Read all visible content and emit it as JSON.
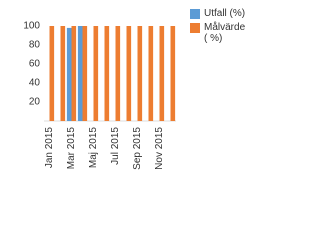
{
  "chart_data": {
    "type": "bar",
    "categories": [
      "Jan 2015",
      null,
      "Mar 2015",
      null,
      "Maj 2015",
      null,
      "Jul 2015",
      null,
      "Sep 2015",
      null,
      "Nov 2015",
      null
    ],
    "series": [
      {
        "name": "Utfall (%)",
        "color": "#5b9bd5",
        "values": [
          null,
          null,
          98,
          100,
          null,
          null,
          null,
          null,
          null,
          null,
          null,
          null
        ]
      },
      {
        "name": "Målvärde ( %)",
        "color": "#ed7d31",
        "values": [
          100,
          100,
          100,
          100,
          100,
          100,
          100,
          100,
          100,
          100,
          100,
          100
        ]
      }
    ],
    "ylim": [
      0,
      120
    ],
    "yticks": [
      20,
      40,
      60,
      80,
      100
    ],
    "grid": false
  }
}
